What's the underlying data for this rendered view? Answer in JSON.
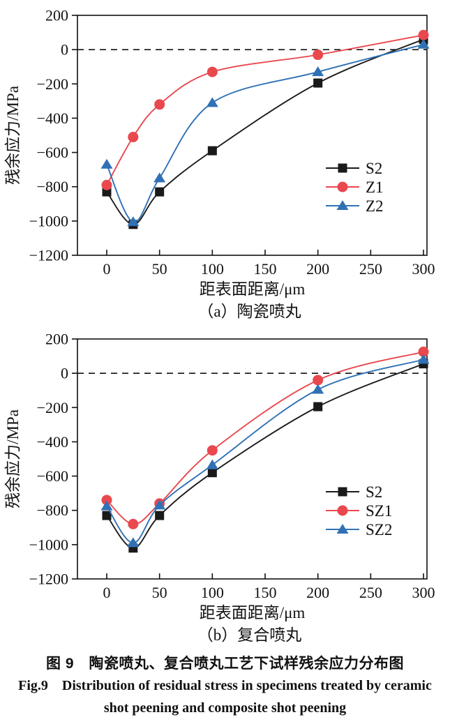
{
  "figure": {
    "caption_zh": "图 9　陶瓷喷丸、复合喷丸工艺下试样残余应力分布图",
    "caption_en_line1": "Fig.9　Distribution of residual stress in specimens treated by ceramic",
    "caption_en_line2": "shot peening and composite shot peening"
  },
  "chart_data": [
    {
      "type": "line",
      "subcaption": "（a）陶瓷喷丸",
      "xlabel": "距表面距离/μm",
      "ylabel": "残余应力/MPa",
      "xlim": [
        0,
        300
      ],
      "ylim": [
        -1200,
        200
      ],
      "xticks": [
        0,
        50,
        100,
        150,
        200,
        250,
        300
      ],
      "yticks": [
        200,
        0,
        -200,
        -400,
        -600,
        -800,
        -1000,
        -1200
      ],
      "zero_line": "dashed",
      "grid": false,
      "legend_position": "middle-right",
      "x": [
        0,
        25,
        50,
        100,
        200,
        300
      ],
      "series": [
        {
          "name": "S2",
          "marker": "square",
          "color": "#1a1a1a",
          "values": [
            -830,
            -1020,
            -830,
            -590,
            -195,
            60
          ]
        },
        {
          "name": "Z1",
          "marker": "circle",
          "color": "#e9484f",
          "values": [
            -790,
            -510,
            -320,
            -130,
            -30,
            85
          ]
        },
        {
          "name": "Z2",
          "marker": "triangle",
          "color": "#3071b5",
          "values": [
            -670,
            -1005,
            -750,
            -310,
            -130,
            30
          ]
        }
      ]
    },
    {
      "type": "line",
      "subcaption": "（b）复合喷丸",
      "xlabel": "距表面距离/μm",
      "ylabel": "残余应力/MPa",
      "xlim": [
        0,
        300
      ],
      "ylim": [
        -1200,
        200
      ],
      "xticks": [
        0,
        50,
        100,
        150,
        200,
        250,
        300
      ],
      "yticks": [
        200,
        0,
        -200,
        -400,
        -600,
        -800,
        -1000,
        -1200
      ],
      "zero_line": "dashed",
      "grid": false,
      "legend_position": "middle-right",
      "x": [
        0,
        25,
        50,
        100,
        200,
        300
      ],
      "series": [
        {
          "name": "S2",
          "marker": "square",
          "color": "#1a1a1a",
          "values": [
            -830,
            -1020,
            -830,
            -580,
            -195,
            55
          ]
        },
        {
          "name": "SZ1",
          "marker": "circle",
          "color": "#e9484f",
          "values": [
            -740,
            -880,
            -760,
            -450,
            -40,
            125
          ]
        },
        {
          "name": "SZ2",
          "marker": "triangle",
          "color": "#3071b5",
          "values": [
            -775,
            -990,
            -770,
            -535,
            -95,
            80
          ]
        }
      ]
    }
  ]
}
